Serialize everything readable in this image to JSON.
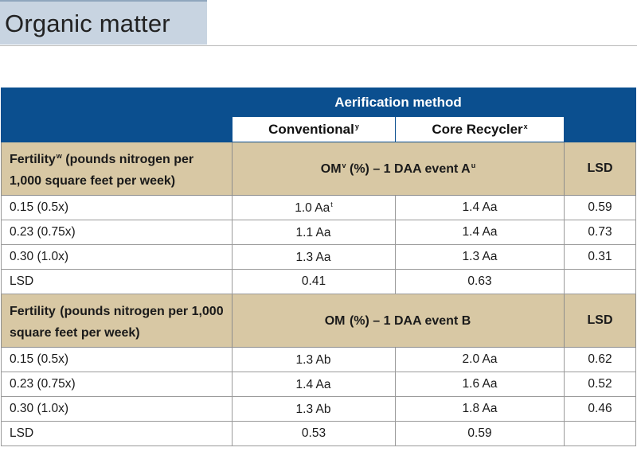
{
  "title": "Organic matter",
  "table": {
    "group_header": "Aerification method",
    "columns": [
      {
        "label": "Conventional",
        "sup": "y"
      },
      {
        "label": "Core Recycler",
        "sup": "x"
      }
    ],
    "sections": [
      {
        "fert_label": "Fertility",
        "fert_sup": "w",
        "fert_rest": " (pounds nitrogen per 1,000 square feet per week)",
        "om_label": "OM",
        "om_sup": "v",
        "om_rest": " (%) – 1 DAA event A",
        "om_sup2": "u",
        "lsd_label": "LSD",
        "rows": [
          {
            "rate": "0.15 (0.5x)",
            "conv": "1.0 Aa",
            "conv_sup": "t",
            "core": "1.4 Aa",
            "lsd": "0.59"
          },
          {
            "rate": "0.23 (0.75x)",
            "conv": "1.1 Aa",
            "conv_sup": "",
            "core": "1.4 Aa",
            "lsd": "0.73"
          },
          {
            "rate": "0.30 (1.0x)",
            "conv": "1.3 Aa",
            "conv_sup": "",
            "core": "1.3 Aa",
            "lsd": "0.31"
          }
        ],
        "lsd_row": {
          "label": "LSD",
          "conv": "0.41",
          "core": "0.63"
        }
      },
      {
        "fert_label": "Fertility",
        "fert_sup": "",
        "fert_rest": " (pounds nitrogen per 1,000 square feet per week)",
        "om_label": "OM",
        "om_sup": "",
        "om_rest": " (%) – 1 DAA event B",
        "om_sup2": "",
        "lsd_label": "LSD",
        "rows": [
          {
            "rate": "0.15 (0.5x)",
            "conv": "1.3 Ab",
            "conv_sup": "",
            "core": "2.0 Aa",
            "lsd": "0.62"
          },
          {
            "rate": "0.23 (0.75x)",
            "conv": "1.4 Aa",
            "conv_sup": "",
            "core": "1.6 Aa",
            "lsd": "0.52"
          },
          {
            "rate": "0.30 (1.0x)",
            "conv": "1.3 Ab",
            "conv_sup": "",
            "core": "1.8 Aa",
            "lsd": "0.46"
          }
        ],
        "lsd_row": {
          "label": "LSD",
          "conv": "0.53",
          "core": "0.59"
        }
      }
    ]
  }
}
